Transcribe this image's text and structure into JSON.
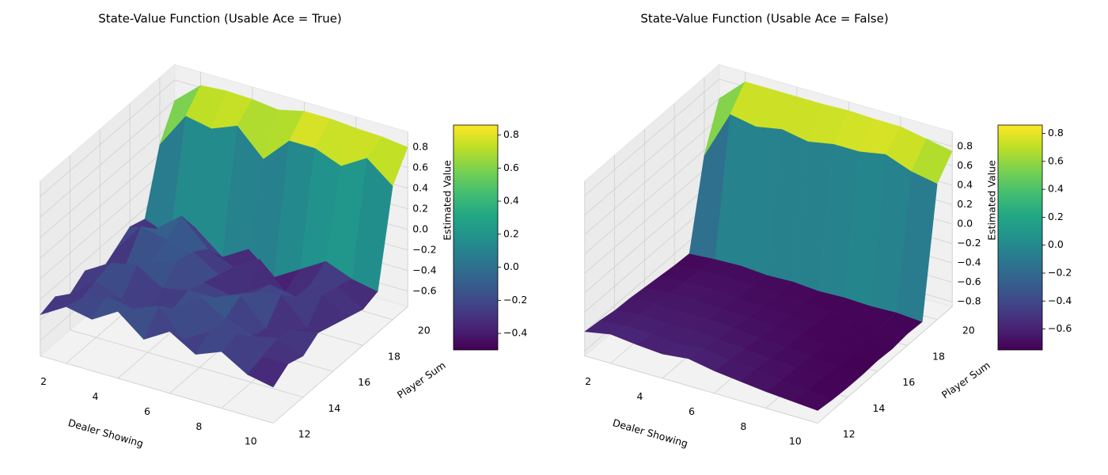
{
  "chart_data": [
    {
      "type": "surface",
      "title": "State-Value Function (Usable Ace = True)",
      "xlabel": "Dealer Showing",
      "ylabel": "Player Sum",
      "zlabel": "Estimated Value",
      "x": [
        1,
        2,
        3,
        4,
        5,
        6,
        7,
        8,
        9,
        10
      ],
      "y": [
        12,
        13,
        14,
        15,
        16,
        17,
        18,
        19,
        20,
        21
      ],
      "z": [
        [
          -0.35,
          -0.2,
          -0.25,
          -0.1,
          -0.3,
          -0.15,
          -0.3,
          -0.2,
          -0.35,
          -0.4
        ],
        [
          -0.3,
          -0.25,
          -0.15,
          -0.2,
          -0.1,
          -0.35,
          -0.2,
          -0.15,
          -0.3,
          -0.3
        ],
        [
          -0.4,
          -0.2,
          -0.3,
          -0.35,
          -0.25,
          -0.05,
          -0.2,
          -0.3,
          -0.25,
          -0.35
        ],
        [
          -0.3,
          -0.15,
          -0.1,
          -0.25,
          -0.2,
          -0.2,
          -0.1,
          -0.35,
          -0.3,
          -0.25
        ],
        [
          -0.45,
          -0.3,
          -0.2,
          -0.1,
          -0.25,
          -0.3,
          -0.2,
          -0.15,
          -0.4,
          -0.3
        ],
        [
          -0.35,
          -0.05,
          -0.1,
          -0.15,
          -0.3,
          -0.4,
          -0.25,
          -0.3,
          -0.2,
          -0.35
        ],
        [
          -0.25,
          -0.2,
          0.0,
          -0.25,
          -0.35,
          -0.2,
          -0.45,
          -0.3,
          -0.25,
          -0.4
        ],
        [
          -0.3,
          -0.4,
          -0.25,
          -0.45,
          -0.3,
          -0.5,
          -0.35,
          -0.2,
          -0.3,
          -0.35
        ],
        [
          0.3,
          0.65,
          0.6,
          0.7,
          0.45,
          0.7,
          0.7,
          0.6,
          0.75,
          0.55
        ],
        [
          0.6,
          0.82,
          0.84,
          0.83,
          0.8,
          0.86,
          0.86,
          0.84,
          0.83,
          0.8
        ]
      ],
      "xlim": [
        1,
        10
      ],
      "ylim": [
        12,
        21
      ],
      "zlim": [
        -0.75,
        0.95
      ],
      "xticks": [
        2,
        4,
        6,
        8,
        10
      ],
      "yticks": [
        12,
        14,
        16,
        18,
        20
      ],
      "zticks": [
        {
          "value": -0.6,
          "label": "−0.6"
        },
        {
          "value": -0.4,
          "label": "−0.4"
        },
        {
          "value": -0.2,
          "label": "−0.2"
        },
        {
          "value": 0,
          "label": "0.0"
        },
        {
          "value": 0.2,
          "label": "0.2"
        },
        {
          "value": 0.4,
          "label": "0.4"
        },
        {
          "value": 0.6,
          "label": "0.6"
        },
        {
          "value": 0.8,
          "label": "0.8"
        }
      ],
      "colormap": "viridis",
      "clim": [
        -0.5,
        0.86
      ],
      "cticks": [
        {
          "value": -0.4,
          "label": "−0.4"
        },
        {
          "value": -0.2,
          "label": "−0.2"
        },
        {
          "value": 0,
          "label": "0.0"
        },
        {
          "value": 0.2,
          "label": "0.2"
        },
        {
          "value": 0.4,
          "label": "0.4"
        },
        {
          "value": 0.6,
          "label": "0.6"
        },
        {
          "value": 0.8,
          "label": "0.8"
        }
      ],
      "grid": true
    },
    {
      "type": "surface",
      "title": "State-Value Function (Usable Ace = False)",
      "xlabel": "Dealer Showing",
      "ylabel": "Player Sum",
      "zlabel": "Estimated Value",
      "x": [
        1,
        2,
        3,
        4,
        5,
        6,
        7,
        8,
        9,
        10
      ],
      "y": [
        12,
        13,
        14,
        15,
        16,
        17,
        18,
        19,
        20,
        21
      ],
      "z": [
        [
          -0.6,
          -0.55,
          -0.58,
          -0.6,
          -0.57,
          -0.62,
          -0.65,
          -0.68,
          -0.7,
          -0.72
        ],
        [
          -0.62,
          -0.6,
          -0.6,
          -0.63,
          -0.6,
          -0.64,
          -0.66,
          -0.7,
          -0.72,
          -0.74
        ],
        [
          -0.65,
          -0.62,
          -0.63,
          -0.62,
          -0.64,
          -0.66,
          -0.68,
          -0.7,
          -0.73,
          -0.75
        ],
        [
          -0.66,
          -0.64,
          -0.65,
          -0.64,
          -0.66,
          -0.68,
          -0.7,
          -0.72,
          -0.74,
          -0.75
        ],
        [
          -0.68,
          -0.66,
          -0.66,
          -0.67,
          -0.68,
          -0.7,
          -0.71,
          -0.73,
          -0.75,
          -0.74
        ],
        [
          -0.7,
          -0.68,
          -0.67,
          -0.69,
          -0.7,
          -0.71,
          -0.72,
          -0.74,
          -0.73,
          -0.75
        ],
        [
          -0.72,
          -0.7,
          -0.69,
          -0.7,
          -0.71,
          -0.72,
          -0.73,
          -0.72,
          -0.74,
          -0.73
        ],
        [
          -0.73,
          -0.71,
          -0.7,
          -0.72,
          -0.71,
          -0.73,
          -0.72,
          -0.73,
          -0.72,
          -0.74
        ],
        [
          0.15,
          0.65,
          0.6,
          0.65,
          0.6,
          0.65,
          0.65,
          0.7,
          0.6,
          0.55
        ],
        [
          0.6,
          0.85,
          0.85,
          0.85,
          0.85,
          0.86,
          0.85,
          0.85,
          0.8,
          0.75
        ]
      ],
      "xlim": [
        1,
        10
      ],
      "ylim": [
        12,
        21
      ],
      "zlim": [
        -0.85,
        0.95
      ],
      "xticks": [
        2,
        4,
        6,
        8,
        10
      ],
      "yticks": [
        12,
        14,
        16,
        18,
        20
      ],
      "zticks": [
        {
          "value": -0.8,
          "label": "−0.8"
        },
        {
          "value": -0.6,
          "label": "−0.6"
        },
        {
          "value": -0.4,
          "label": "−0.4"
        },
        {
          "value": -0.2,
          "label": "−0.2"
        },
        {
          "value": 0,
          "label": "0.0"
        },
        {
          "value": 0.2,
          "label": "0.2"
        },
        {
          "value": 0.4,
          "label": "0.4"
        },
        {
          "value": 0.6,
          "label": "0.6"
        },
        {
          "value": 0.8,
          "label": "0.8"
        }
      ],
      "colormap": "viridis",
      "clim": [
        -0.75,
        0.86
      ],
      "cticks": [
        {
          "value": -0.6,
          "label": "−0.6"
        },
        {
          "value": -0.4,
          "label": "−0.4"
        },
        {
          "value": -0.2,
          "label": "−0.2"
        },
        {
          "value": 0,
          "label": "0.0"
        },
        {
          "value": 0.2,
          "label": "0.2"
        },
        {
          "value": 0.4,
          "label": "0.4"
        },
        {
          "value": 0.6,
          "label": "0.6"
        },
        {
          "value": 0.8,
          "label": "0.8"
        }
      ],
      "grid": true
    }
  ]
}
